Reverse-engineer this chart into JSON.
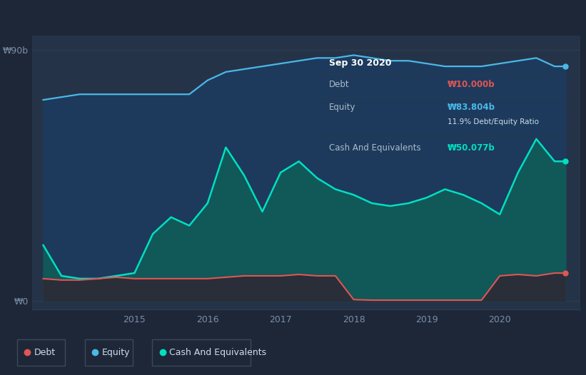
{
  "background_color": "#1e2738",
  "plot_bg_color": "#253348",
  "ylabel_top": "₩90b",
  "ylabel_bottom": "₩0",
  "tooltip": {
    "date": "Sep 30 2020",
    "debt_label": "Debt",
    "debt_value": "₩10.000b",
    "equity_label": "Equity",
    "equity_value": "₩83.804b",
    "ratio": "11.9% Debt/Equity Ratio",
    "cash_label": "Cash And Equivalents",
    "cash_value": "₩50.077b"
  },
  "legend": [
    {
      "label": "Debt",
      "color": "#e05555"
    },
    {
      "label": "Equity",
      "color": "#4ab8e8"
    },
    {
      "label": "Cash And Equivalents",
      "color": "#00e0c0"
    }
  ],
  "equity_color": "#4ab8e8",
  "debt_color": "#e05555",
  "cash_color": "#00e0c0",
  "ylim": [
    -3,
    95
  ],
  "xlim": [
    2013.6,
    2021.1
  ],
  "equity_x": [
    2013.75,
    2014.0,
    2014.25,
    2014.5,
    2014.75,
    2015.0,
    2015.25,
    2015.5,
    2015.75,
    2016.0,
    2016.25,
    2016.5,
    2016.75,
    2017.0,
    2017.25,
    2017.5,
    2017.75,
    2018.0,
    2018.25,
    2018.5,
    2018.75,
    2019.0,
    2019.25,
    2019.5,
    2019.75,
    2020.0,
    2020.25,
    2020.5,
    2020.75,
    2020.9
  ],
  "equity_y": [
    72,
    73,
    74,
    74,
    74,
    74,
    74,
    74,
    74,
    79,
    82,
    83,
    84,
    85,
    86,
    87,
    87,
    88,
    87,
    86,
    86,
    85,
    84,
    84,
    84,
    85,
    86,
    87,
    84,
    84
  ],
  "cash_x": [
    2013.75,
    2014.0,
    2014.25,
    2014.5,
    2014.75,
    2015.0,
    2015.25,
    2015.5,
    2015.75,
    2016.0,
    2016.25,
    2016.5,
    2016.75,
    2017.0,
    2017.25,
    2017.5,
    2017.75,
    2018.0,
    2018.25,
    2018.5,
    2018.75,
    2019.0,
    2019.25,
    2019.5,
    2019.75,
    2020.0,
    2020.25,
    2020.5,
    2020.75,
    2020.9
  ],
  "cash_y": [
    20,
    9,
    8,
    8,
    9,
    10,
    24,
    30,
    27,
    35,
    55,
    45,
    32,
    46,
    50,
    44,
    40,
    38,
    35,
    34,
    35,
    37,
    40,
    38,
    35,
    31,
    46,
    58,
    50,
    50
  ],
  "debt_x": [
    2013.75,
    2014.0,
    2014.25,
    2014.5,
    2014.75,
    2015.0,
    2015.25,
    2015.5,
    2015.75,
    2016.0,
    2016.25,
    2016.5,
    2016.75,
    2017.0,
    2017.25,
    2017.5,
    2017.75,
    2018.0,
    2018.25,
    2018.5,
    2018.75,
    2019.0,
    2019.25,
    2019.5,
    2019.75,
    2020.0,
    2020.25,
    2020.5,
    2020.75,
    2020.9
  ],
  "debt_y": [
    8,
    7.5,
    7.5,
    8,
    8.5,
    8,
    8,
    8,
    8,
    8,
    8.5,
    9,
    9,
    9,
    9.5,
    9,
    9,
    0.5,
    0.3,
    0.3,
    0.3,
    0.3,
    0.3,
    0.3,
    0.3,
    9,
    9.5,
    9,
    10,
    10
  ],
  "grid_color": "#2e3f52",
  "tick_color": "#7a8fa8",
  "legend_border_color": "#3a4a5a",
  "tooltip_bg": "#0d1520",
  "tooltip_border": "#2a3a4a",
  "tooltip_text_color": "#aabbcc",
  "tooltip_date_color": "#ffffff",
  "tooltip_ratio_color": "#ccddee"
}
